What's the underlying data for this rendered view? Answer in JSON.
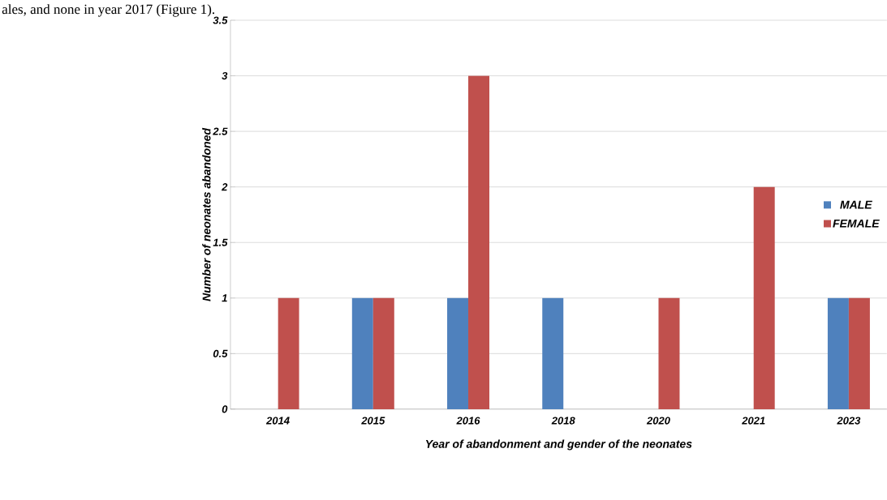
{
  "chart_data": {
    "type": "bar",
    "annotations": [
      "ales, and none in year 2017 (Figure 1)."
    ],
    "xlabel": "Year of  abandonment  and gender of the neonates",
    "ylabel": "Number of neonates abandoned",
    "categories": [
      "2014",
      "2015",
      "2016",
      "2018",
      "2020",
      "2021",
      "2023"
    ],
    "series": [
      {
        "name": "MALE",
        "color": "#4f81bd",
        "values": [
          0,
          1,
          1,
          1,
          0,
          0,
          1
        ]
      },
      {
        "name": "FEMALE",
        "color": "#c0504d",
        "values": [
          1,
          1,
          3,
          0,
          1,
          2,
          1
        ]
      }
    ],
    "ylim": [
      0,
      3.5
    ],
    "yticks": [
      0,
      0.5,
      1,
      1.5,
      2,
      2.5,
      3,
      3.5
    ],
    "grid": "y",
    "legend": "right"
  }
}
